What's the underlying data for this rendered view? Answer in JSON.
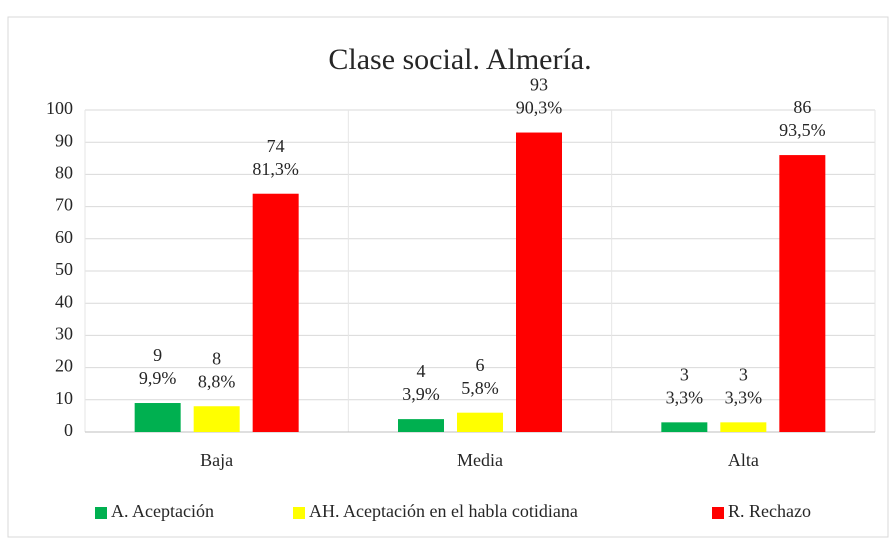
{
  "chart_data": {
    "type": "bar",
    "title": "Clase social. Almería.",
    "categories": [
      "Baja",
      "Media",
      "Alta"
    ],
    "series": [
      {
        "name": "A. Aceptación",
        "color": "#00b050",
        "values": [
          9,
          4,
          3
        ],
        "percent_labels": [
          "9,9%",
          "3,9%",
          "3,3%"
        ]
      },
      {
        "name": "AH. Aceptación en el habla cotidiana",
        "color": "#ffff00",
        "values": [
          8,
          6,
          3
        ],
        "percent_labels": [
          "8,8%",
          "5,8%",
          "3,3%"
        ]
      },
      {
        "name": "R. Rechazo",
        "color": "#ff0000",
        "values": [
          74,
          93,
          86
        ],
        "percent_labels": [
          "81,3%",
          "90,3%",
          "93,5%"
        ]
      }
    ],
    "ylim": [
      0,
      100
    ],
    "yticks": [
      0,
      10,
      20,
      30,
      40,
      50,
      60,
      70,
      80,
      90,
      100
    ],
    "grid": true,
    "legend": "bottom"
  }
}
